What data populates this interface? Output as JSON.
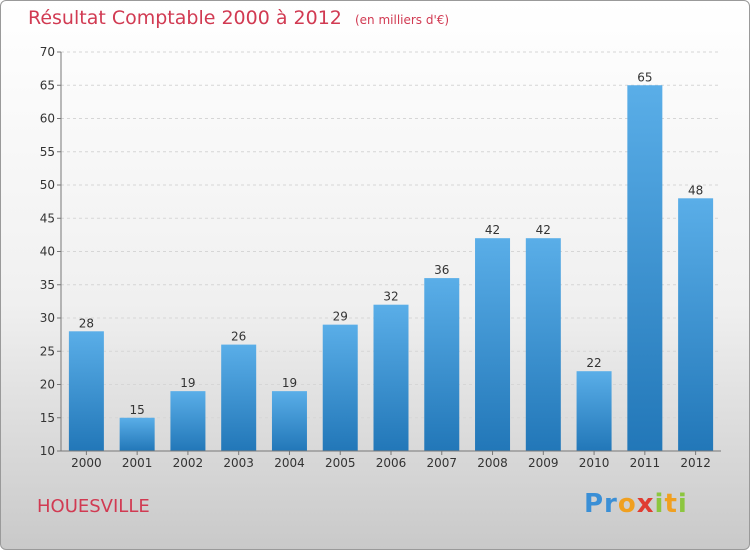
{
  "header": {
    "title": "Résultat Comptable 2000 à 2012",
    "subtitle": "(en milliers d'€)"
  },
  "footer": {
    "city": "HOUESVILLE",
    "logo_text": "Proxiti"
  },
  "colors": {
    "accent": "#d13a52",
    "bar_top": "#5aaee8",
    "bar_bottom": "#2277b8"
  },
  "chart_data": {
    "type": "bar",
    "title": "Résultat Comptable 2000 à 2012",
    "subtitle": "(en milliers d'€)",
    "xlabel": "",
    "ylabel": "",
    "categories": [
      "2000",
      "2001",
      "2002",
      "2003",
      "2004",
      "2005",
      "2006",
      "2007",
      "2008",
      "2009",
      "2010",
      "2011",
      "2012"
    ],
    "values": [
      28,
      15,
      19,
      26,
      19,
      29,
      32,
      36,
      42,
      42,
      22,
      65,
      48
    ],
    "ylim": [
      10,
      70
    ],
    "yticks": [
      10,
      15,
      20,
      25,
      30,
      35,
      40,
      45,
      50,
      55,
      60,
      65,
      70
    ],
    "grid": true
  }
}
